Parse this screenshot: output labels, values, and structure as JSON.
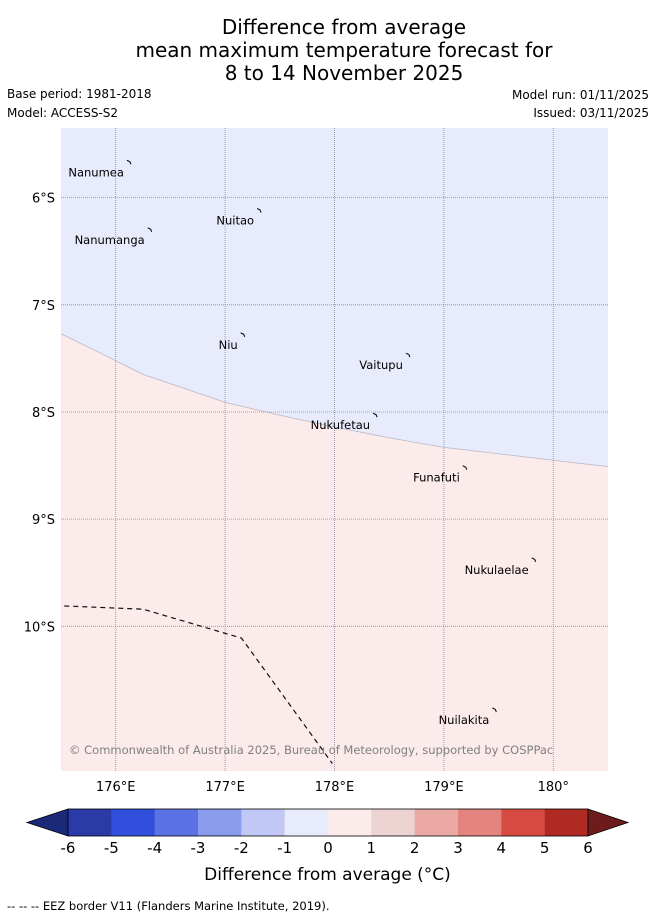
{
  "title": {
    "line1": "Difference from average",
    "line2": "mean maximum temperature forecast for",
    "line3": "8 to 14 November 2025"
  },
  "meta": {
    "base_period": "Base period: 1981-2018",
    "model": "Model: ACCESS-S2",
    "model_run": "Model run: 01/11/2025",
    "issued": "Issued: 03/11/2025"
  },
  "map": {
    "extent": {
      "lon": [
        175.5,
        180.5
      ],
      "lat": [
        -5.35,
        -11.35
      ]
    },
    "lat_ticks": [
      {
        "value": -6,
        "label": "6°S"
      },
      {
        "value": -7,
        "label": "7°S"
      },
      {
        "value": -8,
        "label": "8°S"
      },
      {
        "value": -9,
        "label": "9°S"
      },
      {
        "value": -10,
        "label": "10°S"
      }
    ],
    "lon_ticks": [
      {
        "value": 176,
        "label": "176°E"
      },
      {
        "value": 177,
        "label": "177°E"
      },
      {
        "value": 178,
        "label": "178°E"
      },
      {
        "value": 179,
        "label": "179°E"
      },
      {
        "value": 180,
        "label": "180°"
      }
    ],
    "islands": [
      {
        "name": "Nanumea",
        "lon": 176.13,
        "lat": -5.67
      },
      {
        "name": "Nuitao",
        "lon": 177.32,
        "lat": -6.12
      },
      {
        "name": "Nanumanga",
        "lon": 176.32,
        "lat": -6.3
      },
      {
        "name": "Niu",
        "lon": 177.17,
        "lat": -7.28
      },
      {
        "name": "Vaitupu",
        "lon": 178.68,
        "lat": -7.47
      },
      {
        "name": "Nukufetau",
        "lon": 178.38,
        "lat": -8.03
      },
      {
        "name": "Funafuti",
        "lon": 179.2,
        "lat": -8.52
      },
      {
        "name": "Nukulaelae",
        "lon": 179.83,
        "lat": -9.38
      },
      {
        "name": "Nuilakita",
        "lon": 179.47,
        "lat": -10.78
      }
    ],
    "anomaly_regions": [
      {
        "range": "-1 to 0",
        "color": "#e8ebfb"
      },
      {
        "range": "0 to 1",
        "color": "#fbebea"
      }
    ],
    "boundary_line": [
      [
        175.5,
        -7.27
      ],
      [
        175.9,
        -7.47
      ],
      [
        176.25,
        -7.65
      ],
      [
        176.6,
        -7.77
      ],
      [
        177.0,
        -7.91
      ],
      [
        177.5,
        -8.03
      ],
      [
        178.0,
        -8.14
      ],
      [
        178.5,
        -8.24
      ],
      [
        179.0,
        -8.33
      ],
      [
        179.5,
        -8.39
      ],
      [
        180.0,
        -8.45
      ],
      [
        180.5,
        -8.51
      ]
    ],
    "eez_line": [
      [
        175.53,
        -9.81
      ],
      [
        176.25,
        -9.84
      ],
      [
        177.15,
        -10.11
      ],
      [
        177.98,
        -11.28
      ]
    ],
    "copyright": "© Commonwealth of Australia 2025, Bureau of Meteorology, supported by COSPPac"
  },
  "colorbar": {
    "title": "Difference from average (°C)",
    "ticks": [
      "-6",
      "-5",
      "-4",
      "-3",
      "-2",
      "-1",
      "0",
      "1",
      "2",
      "3",
      "4",
      "5",
      "6"
    ],
    "low_extend_color": "#1a2a78",
    "high_extend_color": "#6e1b1b",
    "colors": [
      "#2a3aa6",
      "#2f4fdc",
      "#5b72e4",
      "#8a9aec",
      "#c2c8f5",
      "#e8ebfb",
      "#fbebea",
      "#ecd3d1",
      "#eaa9a5",
      "#e4847f",
      "#d84b42",
      "#ae2a22"
    ]
  },
  "footnote": "-- -- -- EEZ border V11 (Flanders Marine Institute, 2019)."
}
